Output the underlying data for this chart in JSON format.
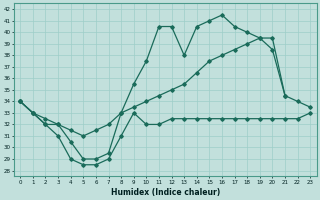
{
  "xlabel": "Humidex (Indice chaleur)",
  "bg_color": "#c2e0dc",
  "grid_color": "#9ecec8",
  "line_color": "#1a6b5a",
  "xlim": [
    -0.5,
    23.5
  ],
  "ylim": [
    27.5,
    42.5
  ],
  "xticks": [
    0,
    1,
    2,
    3,
    4,
    5,
    6,
    7,
    8,
    9,
    10,
    11,
    12,
    13,
    14,
    15,
    16,
    17,
    18,
    19,
    20,
    21,
    22,
    23
  ],
  "yticks": [
    28,
    29,
    30,
    31,
    32,
    33,
    34,
    35,
    36,
    37,
    38,
    39,
    40,
    41,
    42
  ],
  "series1_x": [
    0,
    1,
    2,
    3,
    4,
    5,
    6,
    7,
    8,
    9,
    10,
    11,
    12,
    13,
    14,
    15,
    16,
    17,
    18,
    19,
    20,
    21,
    22,
    23
  ],
  "series1_y": [
    34,
    33,
    32,
    31,
    29,
    28.5,
    28.5,
    29,
    31,
    33,
    32,
    32,
    32.5,
    32.5,
    32.5,
    32.5,
    32.5,
    32.5,
    32.5,
    32.5,
    32.5,
    32.5,
    32.5,
    33
  ],
  "series2_x": [
    0,
    1,
    2,
    3,
    4,
    5,
    6,
    7,
    8,
    9,
    10,
    11,
    12,
    13,
    14,
    15,
    16,
    17,
    18,
    19,
    20,
    21,
    22,
    23
  ],
  "series2_y": [
    34,
    33,
    32.5,
    32,
    31.5,
    31,
    31.5,
    32,
    33,
    33.5,
    34,
    34.5,
    35,
    35.5,
    36.5,
    37.5,
    38,
    38.5,
    39,
    39.5,
    39.5,
    34.5,
    34,
    33.5
  ],
  "series3_x": [
    0,
    1,
    2,
    3,
    4,
    5,
    6,
    7,
    8,
    9,
    10,
    11,
    12,
    13,
    14,
    15,
    16,
    17,
    18,
    19,
    20,
    21
  ],
  "series3_y": [
    34,
    33,
    32,
    32,
    30.5,
    29,
    29,
    29.5,
    33,
    35.5,
    37.5,
    40.5,
    40.5,
    38,
    40.5,
    41,
    41.5,
    40.5,
    40,
    39.5,
    38.5,
    34.5
  ]
}
